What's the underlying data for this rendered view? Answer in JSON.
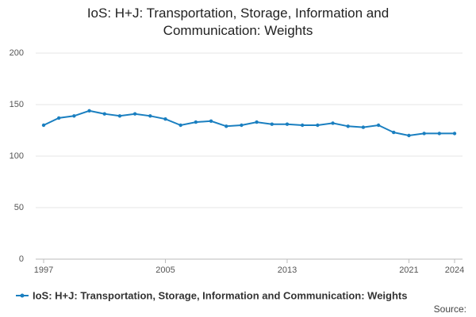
{
  "chart_data": {
    "type": "line",
    "title": "IoS: H+J: Transportation, Storage, Information and Communication: Weights",
    "x": [
      1997,
      1998,
      1999,
      2000,
      2001,
      2002,
      2003,
      2004,
      2005,
      2006,
      2007,
      2008,
      2009,
      2010,
      2011,
      2012,
      2013,
      2014,
      2015,
      2016,
      2017,
      2018,
      2019,
      2020,
      2021,
      2022,
      2023,
      2024
    ],
    "series": [
      {
        "name": "IoS: H+J: Transportation, Storage, Information and Communication: Weights",
        "color": "#1a7fc0",
        "values": [
          130,
          137,
          139,
          144,
          141,
          139,
          141,
          139,
          136,
          130,
          133,
          134,
          129,
          130,
          133,
          131,
          131,
          130,
          130,
          132,
          129,
          128,
          130,
          123,
          120,
          122,
          122,
          122
        ]
      }
    ],
    "xlim": [
      1997,
      2024
    ],
    "xticks": [
      1997,
      2005,
      2013,
      2021,
      2024
    ],
    "ylim": [
      0,
      200
    ],
    "yticks": [
      0,
      50,
      100,
      150,
      200
    ],
    "grid": true,
    "legend": "bottom",
    "source": "Source:"
  }
}
